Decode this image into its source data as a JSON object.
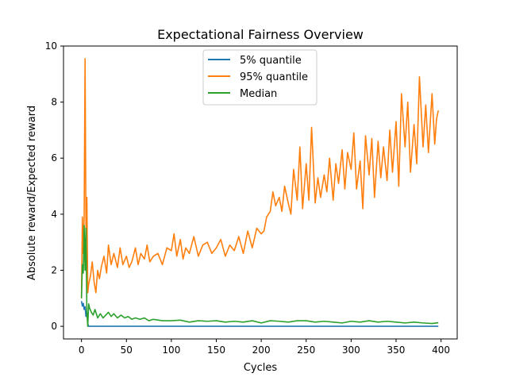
{
  "chart_data": {
    "type": "line",
    "title": "Expectational Fairness Overview",
    "xlabel": "Cycles",
    "ylabel": "Absolute reward/Expected reward",
    "xlim": [
      -20,
      418
    ],
    "ylim": [
      -0.45,
      10
    ],
    "xticks": [
      0,
      50,
      100,
      150,
      200,
      250,
      300,
      350,
      400
    ],
    "yticks": [
      0,
      2,
      4,
      6,
      8,
      10
    ],
    "xtick_labels": [
      "0",
      "50",
      "100",
      "150",
      "200",
      "250",
      "300",
      "350",
      "400"
    ],
    "ytick_labels": [
      "0",
      "2",
      "4",
      "6",
      "8",
      "10"
    ],
    "grid": false,
    "legend": {
      "placement": "top-center"
    },
    "series": [
      {
        "name": "5% quantile",
        "color": "#1f77b4",
        "x": [
          0,
          1,
          2,
          3,
          4,
          5,
          6,
          7,
          8,
          9,
          10,
          50,
          100,
          150,
          200,
          250,
          300,
          350,
          397
        ],
        "y": [
          0.9,
          0.72,
          0.82,
          0.6,
          0.7,
          0.35,
          0.5,
          0.1,
          0.0,
          0.0,
          0.0,
          0.0,
          0.0,
          0.0,
          0.0,
          0.0,
          0.0,
          0.0,
          0.0
        ]
      },
      {
        "name": "95% quantile",
        "color": "#ff7f0e",
        "x": [
          0,
          1,
          2,
          3,
          4,
          5,
          6,
          7,
          8,
          10,
          12,
          14,
          16,
          18,
          20,
          22,
          25,
          28,
          30,
          33,
          36,
          40,
          43,
          46,
          50,
          53,
          56,
          60,
          63,
          66,
          70,
          73,
          76,
          80,
          85,
          90,
          95,
          100,
          103,
          106,
          110,
          113,
          116,
          120,
          125,
          130,
          135,
          140,
          145,
          150,
          155,
          160,
          165,
          170,
          175,
          180,
          185,
          190,
          195,
          200,
          203,
          206,
          210,
          213,
          216,
          220,
          223,
          226,
          230,
          233,
          236,
          240,
          243,
          246,
          250,
          253,
          256,
          260,
          263,
          266,
          270,
          273,
          276,
          280,
          283,
          286,
          290,
          293,
          296,
          300,
          303,
          306,
          310,
          313,
          316,
          320,
          323,
          326,
          330,
          333,
          336,
          340,
          343,
          346,
          350,
          353,
          356,
          360,
          363,
          366,
          370,
          373,
          376,
          380,
          383,
          386,
          390,
          393,
          395,
          397
        ],
        "y": [
          1.0,
          3.9,
          2.6,
          4.0,
          9.55,
          3.5,
          4.6,
          1.2,
          1.5,
          1.8,
          2.3,
          1.6,
          1.2,
          2.0,
          1.7,
          2.1,
          2.5,
          1.9,
          2.9,
          2.2,
          2.6,
          2.1,
          2.8,
          2.2,
          2.5,
          2.1,
          2.3,
          2.8,
          2.2,
          2.6,
          2.4,
          2.9,
          2.3,
          2.5,
          2.6,
          2.2,
          2.8,
          2.7,
          3.3,
          2.5,
          3.1,
          2.4,
          2.8,
          2.6,
          3.2,
          2.5,
          2.9,
          3.0,
          2.6,
          2.8,
          3.1,
          2.5,
          2.9,
          2.7,
          3.2,
          2.6,
          3.4,
          2.8,
          3.5,
          3.3,
          3.4,
          3.9,
          4.1,
          4.8,
          4.3,
          4.6,
          4.1,
          5.0,
          4.4,
          4.0,
          5.6,
          4.5,
          6.4,
          4.2,
          5.8,
          4.5,
          7.1,
          4.4,
          5.3,
          4.6,
          5.4,
          4.8,
          6.0,
          4.5,
          5.8,
          5.1,
          6.3,
          4.9,
          6.2,
          5.6,
          6.9,
          4.9,
          5.9,
          4.2,
          6.8,
          5.4,
          6.7,
          4.6,
          6.6,
          5.3,
          6.4,
          5.2,
          7.0,
          5.5,
          7.3,
          5.0,
          8.3,
          6.4,
          8.0,
          5.5,
          7.2,
          5.8,
          8.9,
          6.4,
          7.9,
          6.2,
          8.3,
          6.5,
          7.4,
          7.7
        ]
      },
      {
        "name": "Median",
        "color": "#2ca02c",
        "x": [
          0,
          1,
          2,
          3,
          4,
          5,
          6,
          7,
          8,
          9,
          11,
          13,
          15,
          18,
          21,
          24,
          27,
          30,
          33,
          36,
          40,
          44,
          48,
          52,
          56,
          60,
          65,
          70,
          75,
          80,
          90,
          100,
          110,
          120,
          130,
          140,
          150,
          160,
          170,
          180,
          190,
          200,
          210,
          220,
          230,
          240,
          250,
          260,
          270,
          280,
          290,
          300,
          310,
          320,
          330,
          340,
          350,
          360,
          370,
          380,
          390,
          397
        ],
        "y": [
          1.0,
          2.2,
          1.9,
          3.6,
          2.0,
          3.5,
          0.5,
          0.0,
          0.8,
          0.65,
          0.5,
          0.4,
          0.6,
          0.3,
          0.45,
          0.3,
          0.4,
          0.5,
          0.35,
          0.45,
          0.3,
          0.4,
          0.3,
          0.35,
          0.25,
          0.3,
          0.25,
          0.3,
          0.2,
          0.25,
          0.2,
          0.2,
          0.22,
          0.15,
          0.2,
          0.18,
          0.2,
          0.15,
          0.18,
          0.15,
          0.2,
          0.12,
          0.2,
          0.18,
          0.15,
          0.2,
          0.2,
          0.15,
          0.18,
          0.15,
          0.12,
          0.18,
          0.15,
          0.2,
          0.15,
          0.18,
          0.15,
          0.12,
          0.15,
          0.12,
          0.1,
          0.13
        ]
      }
    ]
  }
}
